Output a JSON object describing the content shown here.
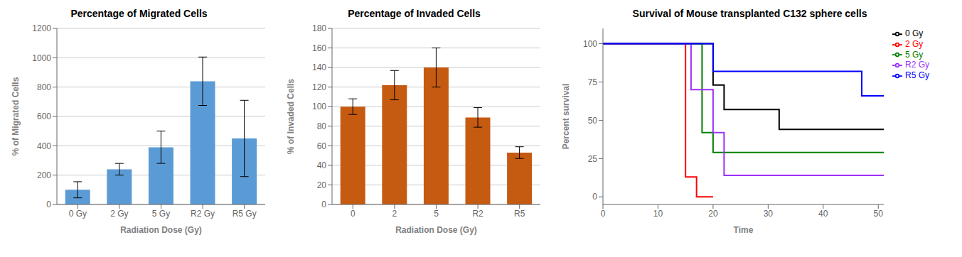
{
  "chart_data": [
    {
      "type": "bar",
      "title": "Percentage of Migrated Cells",
      "xlabel": "Radiation Dose (Gy)",
      "ylabel": "% of Migrated Cells",
      "categories": [
        "0 Gy",
        "2 Gy",
        "5 Gy",
        "R2 Gy",
        "R5 Gy"
      ],
      "values": [
        100,
        240,
        390,
        840,
        450
      ],
      "errors": [
        55,
        40,
        110,
        165,
        260
      ],
      "color": "#5B9BD5",
      "ylim": [
        0,
        1200
      ],
      "yticks": [
        0,
        200,
        400,
        600,
        800,
        1000,
        1200
      ],
      "grid": true
    },
    {
      "type": "bar",
      "title": "Percentage of Invaded Cells",
      "xlabel": "Radiation Dose (Gy)",
      "ylabel": "% of Invaded Cells",
      "categories": [
        "0",
        "2",
        "5",
        "R2",
        "R5"
      ],
      "values": [
        100,
        122,
        140,
        89,
        53
      ],
      "errors": [
        8,
        15,
        20,
        10,
        6
      ],
      "color": "#C55A11",
      "ylim": [
        0,
        180
      ],
      "yticks": [
        0,
        20,
        40,
        60,
        80,
        100,
        120,
        140,
        160,
        180
      ],
      "grid": true
    },
    {
      "type": "line",
      "title": "Survival of Mouse transplanted C132 sphere cells",
      "xlabel": "Time",
      "ylabel": "Percent survival",
      "xlim": [
        0,
        51
      ],
      "ylim": [
        -5,
        110
      ],
      "xticks": [
        0,
        10,
        20,
        30,
        40,
        50
      ],
      "yticks": [
        0,
        25,
        50,
        75,
        100
      ],
      "grid": false,
      "legend": "upper right",
      "series": [
        {
          "name": "0 Gy",
          "color": "#000000",
          "x": [
            0,
            20,
            20,
            22,
            22,
            32,
            32,
            47,
            47,
            51
          ],
          "values": [
            100,
            100,
            73,
            73,
            57,
            57,
            44,
            44,
            44,
            44
          ]
        },
        {
          "name": "2 Gy",
          "color": "#FF0000",
          "x": [
            0,
            15,
            15,
            17,
            17,
            20,
            20
          ],
          "values": [
            100,
            100,
            13,
            13,
            0,
            0,
            0
          ]
        },
        {
          "name": "5 Gy",
          "color": "#008000",
          "x": [
            0,
            18,
            18,
            20,
            20,
            51
          ],
          "values": [
            100,
            100,
            42,
            42,
            29,
            29
          ]
        },
        {
          "name": "R2 Gy",
          "color": "#9B30FF",
          "x": [
            0,
            16,
            16,
            20,
            20,
            22,
            22,
            51
          ],
          "values": [
            100,
            100,
            70,
            70,
            42,
            42,
            14,
            14
          ]
        },
        {
          "name": "R5 Gy",
          "color": "#0000FF",
          "x": [
            0,
            20,
            20,
            47,
            47,
            51
          ],
          "values": [
            100,
            100,
            82,
            82,
            66,
            66
          ]
        }
      ]
    }
  ]
}
